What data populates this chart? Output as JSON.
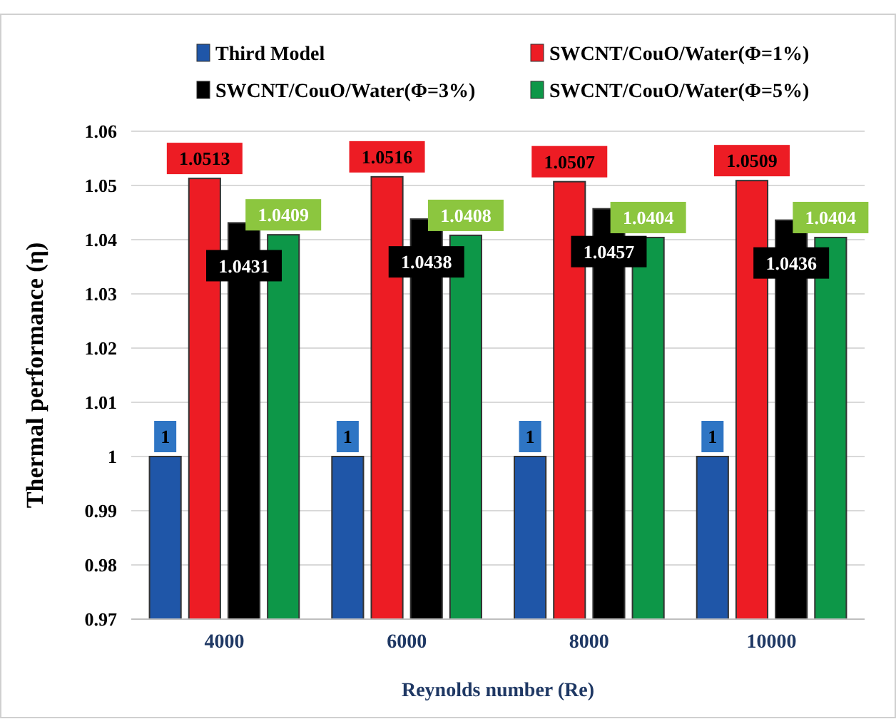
{
  "chart_data": {
    "type": "bar",
    "xlabel": "Reynolds number (Re)",
    "ylabel": "Thermal performance (η)",
    "categories": [
      "4000",
      "6000",
      "8000",
      "10000"
    ],
    "series": [
      {
        "name": "Third Model",
        "color": "#1f56a8",
        "values": [
          1,
          1,
          1,
          1
        ]
      },
      {
        "name": "SWCNT/CouO/Water(Φ=1%)",
        "color": "#ed1c24",
        "values": [
          1.0513,
          1.0516,
          1.0507,
          1.0509
        ]
      },
      {
        "name": "SWCNT/CouO/Water(Φ=3%)",
        "color": "#000000",
        "values": [
          1.0431,
          1.0438,
          1.0457,
          1.0436
        ]
      },
      {
        "name": "SWCNT/CouO/Water(Φ=5%)",
        "color": "#0d9748",
        "values": [
          1.0409,
          1.0408,
          1.0404,
          1.0404
        ]
      }
    ],
    "ylim": [
      0.97,
      1.06
    ],
    "yticks": [
      0.97,
      0.98,
      0.99,
      1,
      1.01,
      1.02,
      1.03,
      1.04,
      1.05,
      1.06
    ],
    "grid": "y",
    "legend": "top",
    "data_labels": true
  }
}
